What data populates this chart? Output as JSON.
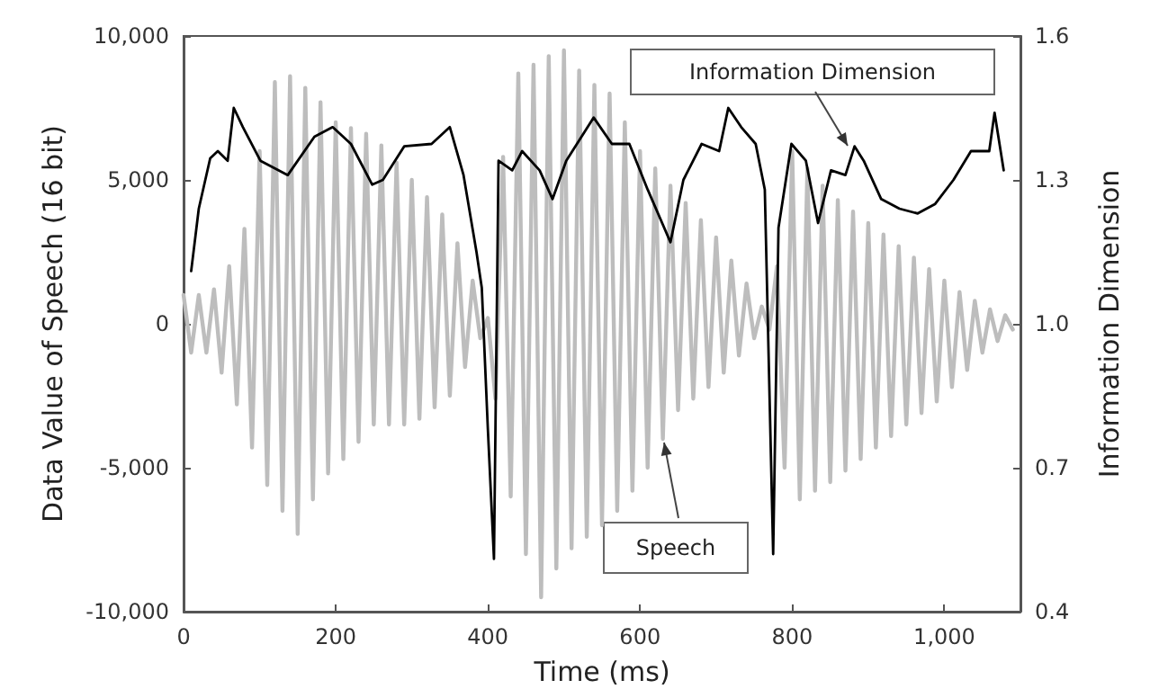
{
  "chart_data": {
    "type": "line",
    "xlabel": "Time (ms)",
    "ylabel": "Data Value of Speech (16 bit)",
    "y2label": "Information Dimension",
    "xlim": [
      0,
      1100
    ],
    "xticks": [
      0,
      200,
      400,
      600,
      800,
      {
        "value": 1000,
        "label": "1,000"
      }
    ],
    "ylim": [
      -10000,
      10000
    ],
    "yticks": [
      {
        "value": -10000,
        "label": "-10,000"
      },
      {
        "value": -5000,
        "label": "-5,000"
      },
      0,
      {
        "value": 5000,
        "label": "5,000"
      },
      {
        "value": 10000,
        "label": "10,000"
      }
    ],
    "y2lim": [
      0.4,
      1.6
    ],
    "y2ticks": [
      0.4,
      0.7,
      {
        "value": 1.0,
        "label": "1.0"
      },
      1.3,
      1.6
    ],
    "grid": false,
    "legend": false,
    "marker": "none",
    "line_style": "solid",
    "series": [
      {
        "name": "Speech",
        "color": "#bdbdbd",
        "x": [
          0,
          10,
          20,
          30,
          40,
          50,
          60,
          70,
          80,
          90,
          100,
          110,
          120,
          130,
          140,
          150,
          160,
          170,
          180,
          190,
          200,
          210,
          220,
          230,
          240,
          250,
          260,
          270,
          280,
          290,
          300,
          310,
          320,
          330,
          340,
          350,
          360,
          370,
          380,
          390,
          400,
          410,
          420,
          430,
          440,
          450,
          460,
          470,
          480,
          490,
          500,
          510,
          520,
          530,
          540,
          550,
          560,
          570,
          580,
          590,
          600,
          610,
          620,
          630,
          640,
          650,
          660,
          670,
          680,
          690,
          700,
          710,
          720,
          730,
          740,
          750,
          760,
          770,
          780,
          790,
          800,
          810,
          820,
          830,
          840,
          850,
          860,
          870,
          880,
          890,
          900,
          910,
          920,
          930,
          940,
          950,
          960,
          970,
          980,
          990,
          1000,
          1010,
          1020,
          1030,
          1040,
          1050,
          1060,
          1070,
          1080,
          1090
        ],
        "values": [
          1000,
          -1000,
          1000,
          -1000,
          1200,
          -1700,
          2000,
          -2800,
          3300,
          -4300,
          6000,
          -5600,
          8400,
          -6500,
          8600,
          -7300,
          8200,
          -6100,
          7700,
          -5200,
          7000,
          -4700,
          6800,
          -4100,
          6600,
          -3500,
          6200,
          -3500,
          5600,
          -3500,
          5000,
          -3300,
          4400,
          -2900,
          3800,
          -2500,
          2800,
          -1500,
          1500,
          -500,
          200,
          -2600,
          5800,
          -6000,
          8700,
          -8000,
          9000,
          -9500,
          9300,
          -8500,
          9500,
          -7800,
          8800,
          -7400,
          8300,
          -7000,
          8000,
          -6500,
          7000,
          -5800,
          6000,
          -5000,
          5400,
          -4000,
          4800,
          -3000,
          4200,
          -2600,
          3600,
          -2200,
          3000,
          -1700,
          2200,
          -1100,
          1400,
          -500,
          600,
          -200,
          2000,
          -5000,
          6000,
          -6100,
          5400,
          -5800,
          4800,
          -5500,
          4300,
          -5100,
          3900,
          -4700,
          3500,
          -4300,
          3100,
          -3900,
          2700,
          -3500,
          2300,
          -3100,
          1900,
          -2700,
          1500,
          -2200,
          1100,
          -1600,
          800,
          -1000,
          500,
          -600,
          300,
          -200
        ]
      },
      {
        "name": "Information Dimension",
        "axis": "y2",
        "color": "#000000",
        "x": [
          10,
          20,
          35,
          45,
          58,
          66,
          78,
          101,
          137,
          172,
          196,
          220,
          248,
          262,
          290,
          326,
          350,
          368,
          385,
          392,
          400,
          408,
          414,
          432,
          445,
          468,
          485,
          503,
          539,
          563,
          586,
          610,
          640,
          657,
          681,
          704,
          716,
          733,
          752,
          764,
          775,
          782,
          799,
          818,
          834,
          851,
          870,
          882,
          894,
          917,
          941,
          965,
          988,
          1012,
          1035,
          1059,
          1066,
          1078
        ],
        "values": [
          1.11,
          1.24,
          1.345,
          1.36,
          1.34,
          1.45,
          1.41,
          1.34,
          1.31,
          1.39,
          1.41,
          1.375,
          1.29,
          1.3,
          1.37,
          1.375,
          1.41,
          1.31,
          1.15,
          1.075,
          0.78,
          0.51,
          1.34,
          1.32,
          1.36,
          1.32,
          1.26,
          1.34,
          1.43,
          1.375,
          1.375,
          1.28,
          1.17,
          1.3,
          1.375,
          1.36,
          1.45,
          1.41,
          1.375,
          1.28,
          0.52,
          1.2,
          1.375,
          1.34,
          1.21,
          1.32,
          1.31,
          1.37,
          1.34,
          1.26,
          1.24,
          1.23,
          1.25,
          1.3,
          1.36,
          1.36,
          1.44,
          1.32
        ]
      }
    ]
  }
}
